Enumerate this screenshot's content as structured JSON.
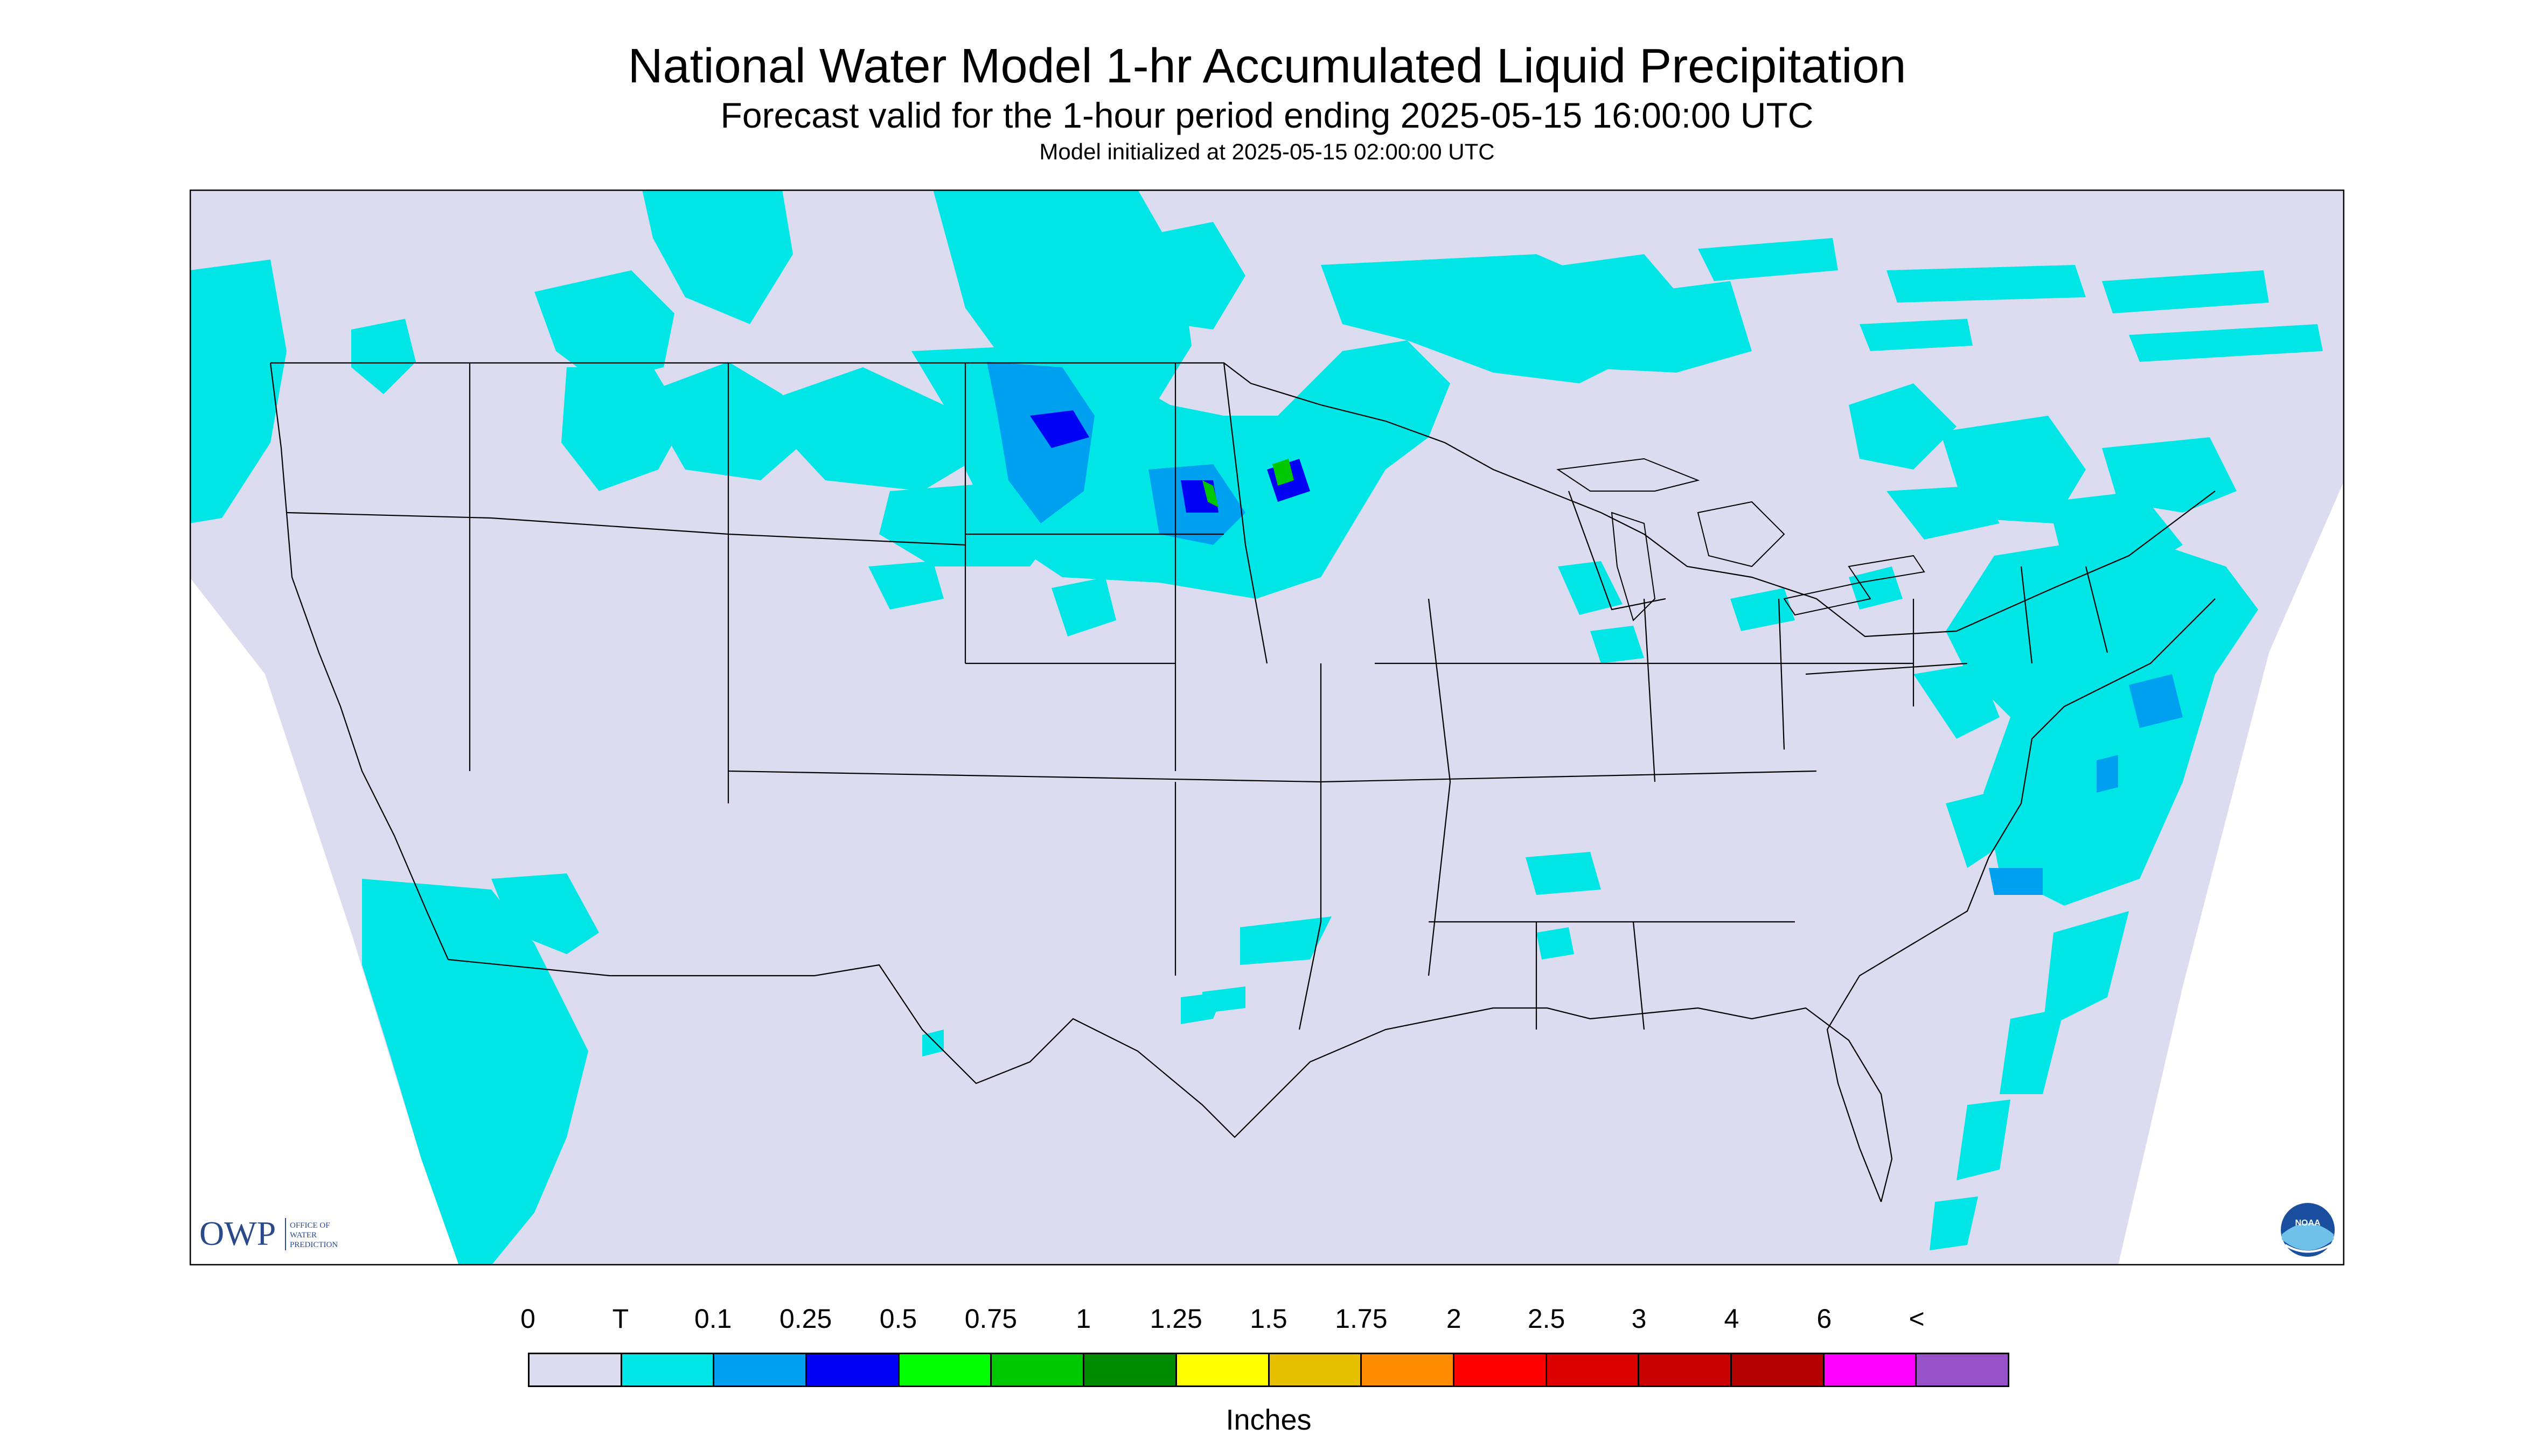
{
  "header": {
    "title": "National Water Model 1-hr Accumulated Liquid Precipitation",
    "subtitle": "Forecast valid for the 1-hour period ending 2025-05-15 16:00:00 UTC",
    "init": "Model initialized at 2025-05-15 02:00:00 UTC"
  },
  "logos": {
    "owp_text": "OWP",
    "owp_sub1": "OFFICE OF",
    "owp_sub2": "WATER",
    "owp_sub3": "PREDICTION",
    "noaa_text": "NOAA"
  },
  "legend": {
    "units": "Inches",
    "labels": [
      "0",
      "T",
      "0.1",
      "0.25",
      "0.5",
      "0.75",
      "1",
      "1.25",
      "1.5",
      "1.75",
      "2",
      "2.5",
      "3",
      "4",
      "6",
      "<"
    ],
    "colors": [
      "#dcdcf0",
      "#00e6e6",
      "#00a0f0",
      "#0000f5",
      "#00ff00",
      "#00c800",
      "#008c00",
      "#ffff00",
      "#e6be00",
      "#ff8c00",
      "#ff0000",
      "#dc0000",
      "#c80000",
      "#b40000",
      "#ff00ff",
      "#9650c8"
    ]
  },
  "colors": {
    "background": "#dcdcf0",
    "trace": "#00e6e6",
    "light": "#00a0f0",
    "moderate": "#0000f5",
    "heavy": "#00ff00",
    "boundary": "#000000"
  }
}
